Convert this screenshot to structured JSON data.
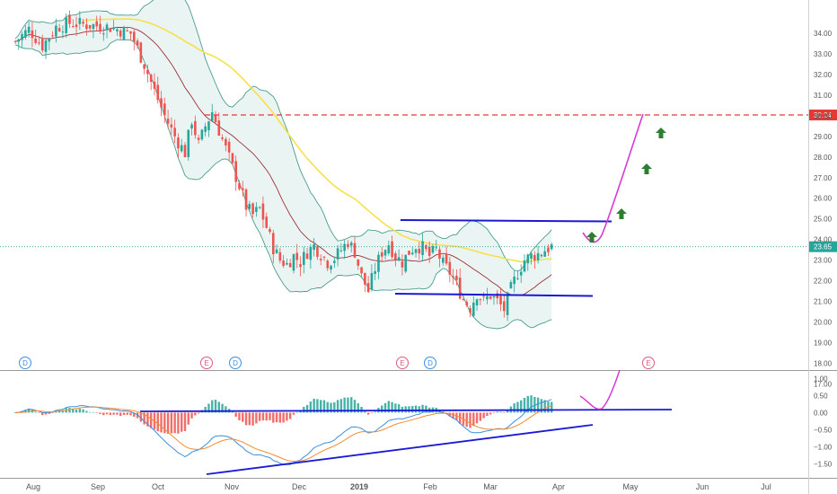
{
  "chart_data": {
    "type": "candlestick",
    "price_pane": {
      "y_ticks": [
        "34.00",
        "33.00",
        "32.00",
        "31.00",
        "30.00",
        "29.00",
        "28.00",
        "27.00",
        "26.00",
        "25.00",
        "24.00",
        "23.00",
        "22.00",
        "21.00",
        "20.00",
        "19.00",
        "18.00",
        "17.00"
      ],
      "ylim": [
        16.6,
        34.5
      ],
      "resistance_level": "30.04",
      "last_price": "23.65",
      "resistance_color": "#e53935",
      "last_price_color": "#26a69a",
      "up_color": "#26a69a",
      "down_color": "#ef5350",
      "sma_color": "#f7e04b",
      "band_color": "#4a9c8c",
      "mid_color": "#a0303a",
      "trend_color": "#1a1ad6",
      "projection_color": "#d63ad6",
      "arrow_color": "#2e7d32"
    },
    "macd_pane": {
      "y_ticks": [
        "1.00",
        "0.50",
        "0.00",
        "−0.50",
        "−1.00",
        "−1.50"
      ],
      "ylim": [
        -1.75,
        1.15
      ],
      "macd_color": "#3b8fe0",
      "signal_color": "#f58a2b"
    },
    "x_axis": {
      "labels": [
        "Aug",
        "Sep",
        "Oct",
        "Nov",
        "Dec",
        "2019",
        "Feb",
        "Mar",
        "Apr",
        "May",
        "Jun",
        "Jul"
      ],
      "bold_label": "2019"
    },
    "events": [
      {
        "label": "D",
        "color": "#3b8fe0"
      },
      {
        "label": "E",
        "color": "#e05a7a"
      },
      {
        "label": "D",
        "color": "#3b8fe0"
      },
      {
        "label": "E",
        "color": "#e05a7a"
      },
      {
        "label": "D",
        "color": "#3b8fe0"
      },
      {
        "label": "E",
        "color": "#e05a7a"
      }
    ]
  }
}
